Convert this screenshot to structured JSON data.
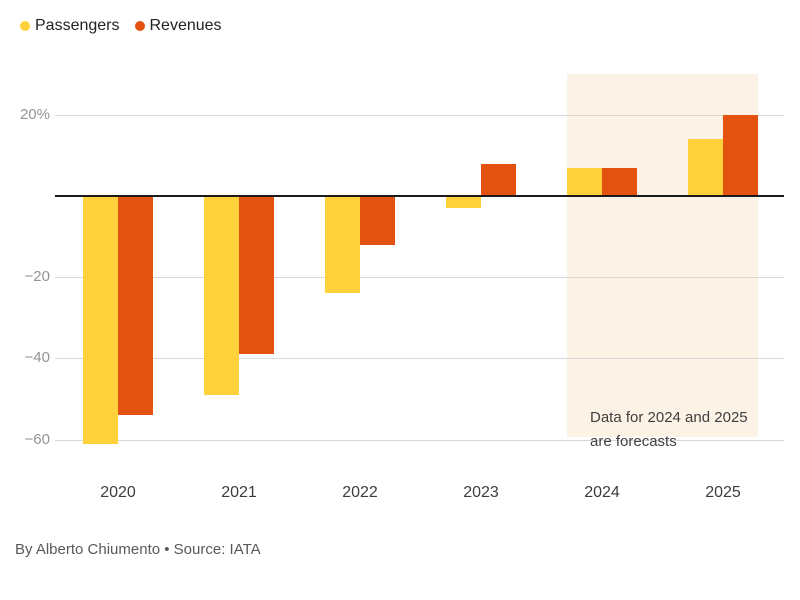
{
  "chart_data": {
    "type": "bar",
    "title": "",
    "categories": [
      "2020",
      "2021",
      "2022",
      "2023",
      "2024",
      "2025"
    ],
    "series": [
      {
        "name": "Passengers",
        "color": "#FFD23C",
        "values": [
          -61,
          -49,
          -24,
          -3,
          7,
          14
        ]
      },
      {
        "name": "Revenues",
        "color": "#E3520F",
        "values": [
          -54,
          -39,
          -12,
          8,
          7,
          20
        ]
      }
    ],
    "unit": "%",
    "yticks": [
      {
        "value": 20,
        "label": "20%"
      },
      {
        "value": -20,
        "label": "−20"
      },
      {
        "value": -40,
        "label": "−40"
      },
      {
        "value": -60,
        "label": "−60"
      }
    ],
    "ylim": [
      -66,
      30
    ],
    "grid": true,
    "zero_baseline": true,
    "legend_position": "top-left",
    "forecast_band": {
      "categories": [
        "2024",
        "2025"
      ],
      "color": "#FCF2E5"
    },
    "annotation": {
      "line1": "Data for 2024 and 2025",
      "line2": "are forecasts"
    },
    "byline": "By Alberto Chiumento • Source: IATA",
    "colors": {
      "gridline": "#D8D8D8",
      "zero_line": "#1A1A1A",
      "ytick_text": "#949494",
      "xtick_text": "#3D3D3D"
    }
  }
}
